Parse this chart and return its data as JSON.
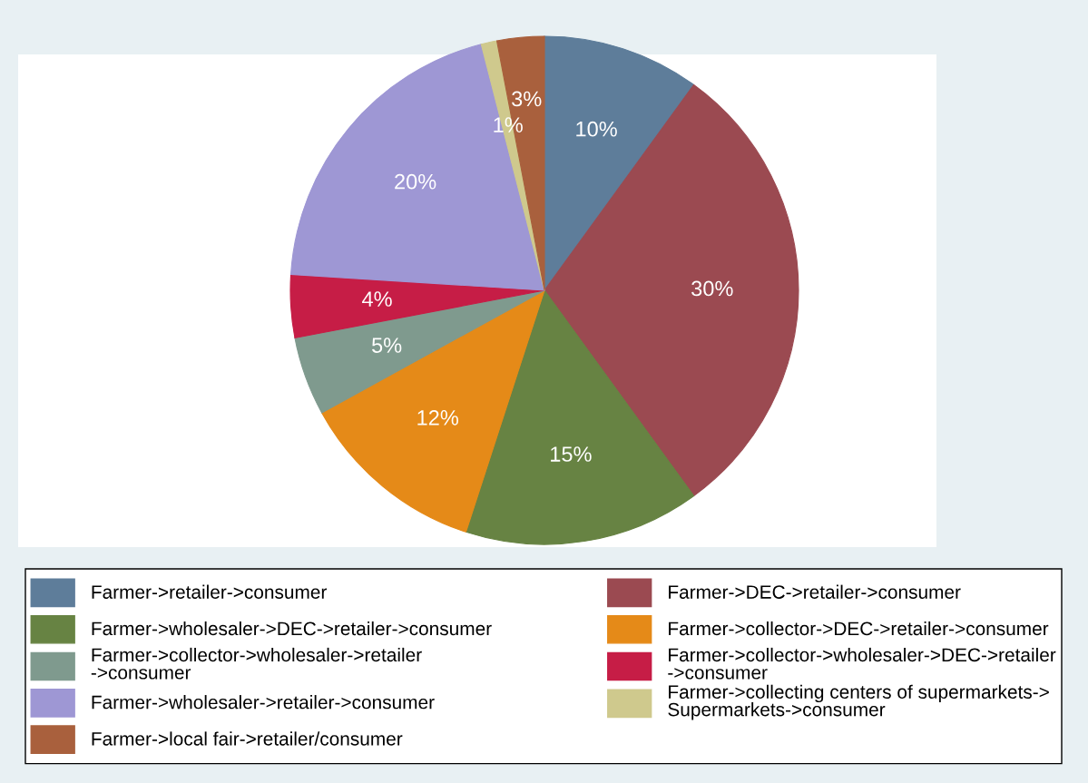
{
  "chart_data": {
    "type": "pie",
    "categories": [
      "Farmer->retailer->consumer",
      "Farmer->DEC->retailer->consumer",
      "Farmer->wholesaler->DEC->retailer->consumer",
      "Farmer->collector->DEC->retailer->consumer",
      "Farmer->collector->wholesaler->retailer\n->consumer",
      "Farmer->collector->wholesaler->DEC->retailer\n->consumer",
      "Farmer->wholesaler->retailer->consumer",
      "Farmer->collecting centers of supermarkets->\nSupermarkets->consumer",
      "Farmer->local fair->retailer/consumer"
    ],
    "values": [
      10,
      30,
      15,
      12,
      5,
      4,
      20,
      1,
      3
    ],
    "colors": [
      "#5e7d9a",
      "#9b4a51",
      "#678343",
      "#e58a18",
      "#7f9a8e",
      "#c61d46",
      "#9e97d4",
      "#cfc98d",
      "#a9603d"
    ],
    "value_labels": [
      "10%",
      "30%",
      "15%",
      "12%",
      "5%",
      "4%",
      "20%",
      "1%",
      "3%"
    ],
    "legend": "bottom"
  }
}
